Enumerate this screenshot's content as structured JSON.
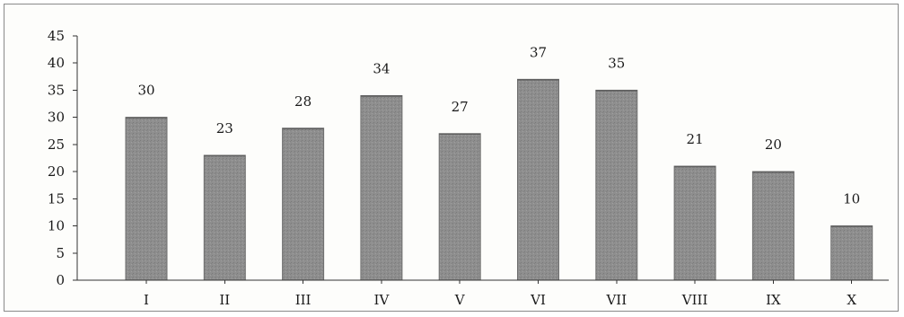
{
  "chart_data": {
    "type": "bar",
    "categories": [
      "I",
      "II",
      "III",
      "IV",
      "V",
      "VI",
      "VII",
      "VIII",
      "IX",
      "X"
    ],
    "values": [
      30,
      23,
      28,
      34,
      27,
      37,
      35,
      21,
      20,
      10
    ],
    "data_labels": [
      "30",
      "23",
      "28",
      "34",
      "27",
      "37",
      "35",
      "21",
      "20",
      "10"
    ],
    "title": "",
    "xlabel": "",
    "ylabel": "",
    "ylim": [
      0,
      45
    ],
    "yticks": [
      "0",
      "5",
      "10",
      "15",
      "20",
      "25",
      "30",
      "35",
      "40",
      "45"
    ],
    "grid": false,
    "legend": "none",
    "bar_color": "#8e8e8e"
  }
}
